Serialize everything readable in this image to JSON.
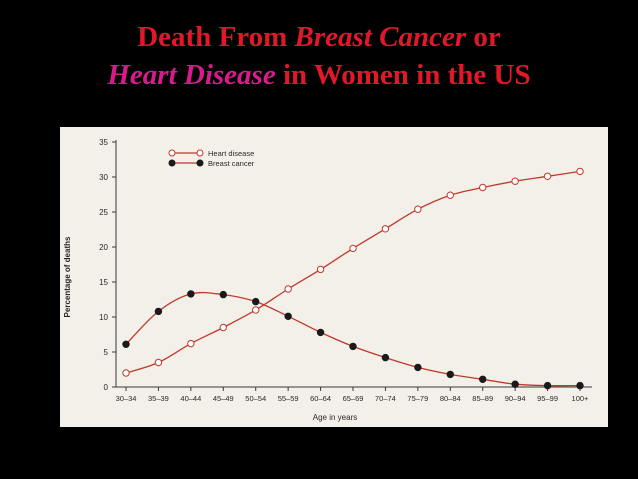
{
  "title": {
    "line1_prefix": "Death From",
    "line1_italic": "Breast Cancer",
    "line1_suffix": "or",
    "line2_italic": "Heart Disease",
    "line2_suffix": "in Women in the US"
  },
  "colors": {
    "background": "#000000",
    "title_red": "#e0182a",
    "title_magenta": "#d81b8c",
    "plot_line": "#c0392b",
    "panel": "#f3efe9"
  },
  "chart_data": {
    "type": "line",
    "xlabel": "Age in years",
    "ylabel": "Percentage of deaths",
    "ylim": [
      0,
      35
    ],
    "yticks": [
      0,
      5,
      10,
      15,
      20,
      25,
      30,
      35
    ],
    "legend_position": "top-left",
    "categories": [
      "30–34",
      "35–39",
      "40–44",
      "45–49",
      "50–54",
      "55–59",
      "60–64",
      "65–69",
      "70–74",
      "75–79",
      "80–84",
      "85–89",
      "90–94",
      "95–99",
      "100+"
    ],
    "series": [
      {
        "name": "Heart disease",
        "marker": "open-circle",
        "values": [
          2,
          3.5,
          6.2,
          8.5,
          11,
          14,
          16.8,
          19.8,
          22.6,
          25.4,
          27.4,
          28.5,
          29.4,
          30.1,
          30.8
        ]
      },
      {
        "name": "Breast cancer",
        "marker": "filled-circle",
        "values": [
          6.1,
          10.8,
          13.3,
          13.2,
          12.2,
          10.1,
          7.8,
          5.8,
          4.2,
          2.8,
          1.8,
          1.1,
          0.4,
          0.2,
          0.2
        ]
      }
    ]
  }
}
